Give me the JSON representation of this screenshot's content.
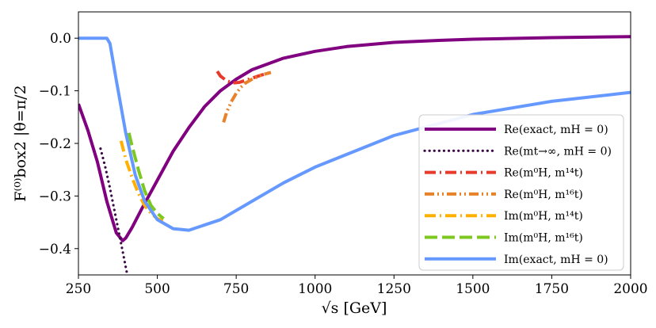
{
  "chart_data": {
    "type": "line",
    "xlabel": "√s  [GeV]",
    "ylabel": "F⁽⁰⁾box2 |θ=π/2",
    "xlim": [
      250,
      2000
    ],
    "ylim": [
      -0.45,
      0.05
    ],
    "xticks": [
      250,
      500,
      750,
      1000,
      1250,
      1500,
      1750,
      2000
    ],
    "xtick_labels": [
      "250",
      "500",
      "750",
      "1000",
      "1250",
      "1500",
      "1750",
      "2000"
    ],
    "yticks": [
      0.0,
      -0.1,
      -0.2,
      -0.3,
      -0.4
    ],
    "ytick_labels": [
      "0.0",
      "−0.1",
      "−0.2",
      "−0.3",
      "−0.4"
    ],
    "grid": false,
    "legend_position": "lower-right",
    "series": [
      {
        "name": "Re(exact, m_H = 0)",
        "label": "Re(exact, mH = 0)",
        "color": "#800080",
        "style": "solid",
        "x": [
          250,
          280,
          310,
          340,
          370,
          390,
          400,
          420,
          450,
          500,
          550,
          600,
          650,
          700,
          750,
          800,
          900,
          1000,
          1100,
          1250,
          1400,
          1500,
          1750,
          2000
        ],
        "y": [
          -0.125,
          -0.175,
          -0.235,
          -0.31,
          -0.37,
          -0.385,
          -0.38,
          -0.36,
          -0.325,
          -0.27,
          -0.215,
          -0.17,
          -0.13,
          -0.1,
          -0.078,
          -0.06,
          -0.038,
          -0.025,
          -0.016,
          -0.008,
          -0.004,
          -0.002,
          0.001,
          0.003
        ]
      },
      {
        "name": "Re(m_t → ∞, m_H = 0)",
        "label": "Re(mt→∞, mH = 0)",
        "color": "#3b0a45",
        "style": "dotted",
        "x": [
          320,
          335,
          350,
          360,
          370,
          380,
          390,
          400,
          405
        ],
        "y": [
          -0.21,
          -0.245,
          -0.285,
          -0.315,
          -0.345,
          -0.375,
          -0.405,
          -0.435,
          -0.45
        ]
      },
      {
        "name": "Re(m_H^0, m_t^14)",
        "label": "Re(m⁰H, m¹⁴t)",
        "color": "#e8392a",
        "style": "dashdot",
        "x": [
          690,
          700,
          720,
          740,
          760,
          780,
          800,
          830,
          860
        ],
        "y": [
          -0.063,
          -0.072,
          -0.081,
          -0.085,
          -0.084,
          -0.08,
          -0.076,
          -0.07,
          -0.065
        ]
      },
      {
        "name": "Re(m_H^0, m_t^16)",
        "label": "Re(m⁰H, m¹⁶t)",
        "color": "#e8822a",
        "style": "dashdotdot",
        "x": [
          710,
          720,
          735,
          750,
          765,
          780,
          800,
          830,
          860
        ],
        "y": [
          -0.16,
          -0.14,
          -0.12,
          -0.105,
          -0.093,
          -0.085,
          -0.078,
          -0.07,
          -0.065
        ]
      },
      {
        "name": "Im(m_H^0, m_t^14)",
        "label": "Im(m⁰H, m¹⁴t)",
        "color": "#ffb000",
        "style": "dashdot",
        "x": [
          385,
          400,
          420,
          440,
          460,
          480,
          500,
          520
        ],
        "y": [
          -0.195,
          -0.23,
          -0.265,
          -0.295,
          -0.318,
          -0.333,
          -0.343,
          -0.348
        ]
      },
      {
        "name": "Im(m_H^0, m_t^16)",
        "label": "Im(m⁰H, m¹⁶t)",
        "color": "#7cc820",
        "style": "dashed",
        "x": [
          410,
          420,
          440,
          460,
          480,
          500,
          520
        ],
        "y": [
          -0.18,
          -0.205,
          -0.25,
          -0.29,
          -0.318,
          -0.333,
          -0.343
        ]
      },
      {
        "name": "Im(exact, m_H = 0)",
        "label": "Im(exact, mH = 0)",
        "color": "#6699ff",
        "style": "solid",
        "x": [
          250,
          300,
          340,
          350,
          370,
          400,
          430,
          460,
          500,
          550,
          600,
          700,
          800,
          900,
          1000,
          1250,
          1500,
          1750,
          2000
        ],
        "y": [
          0.0,
          0.0,
          0.0,
          -0.01,
          -0.08,
          -0.18,
          -0.26,
          -0.31,
          -0.345,
          -0.362,
          -0.365,
          -0.345,
          -0.31,
          -0.275,
          -0.245,
          -0.185,
          -0.145,
          -0.12,
          -0.103
        ]
      }
    ]
  }
}
